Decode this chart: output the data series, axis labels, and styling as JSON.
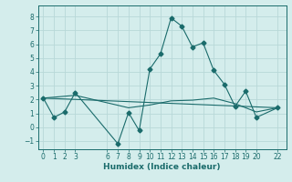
{
  "xlabel": "Humidex (Indice chaleur)",
  "background_color": "#d4edec",
  "grid_color": "#b8d8d8",
  "line_color": "#1a6b6b",
  "xlim": [
    -0.5,
    22.8
  ],
  "ylim": [
    -1.6,
    8.8
  ],
  "xticks": [
    0,
    1,
    2,
    3,
    6,
    7,
    8,
    9,
    10,
    11,
    12,
    13,
    14,
    15,
    16,
    17,
    18,
    19,
    20,
    22
  ],
  "yticks": [
    -1,
    0,
    1,
    2,
    3,
    4,
    5,
    6,
    7,
    8
  ],
  "line1_x": [
    0,
    1,
    2,
    3,
    7,
    8,
    9,
    10,
    11,
    12,
    13,
    14,
    15,
    16,
    17,
    18,
    19,
    20,
    22
  ],
  "line1_y": [
    2.1,
    0.7,
    1.1,
    2.5,
    -1.2,
    1.05,
    -0.25,
    4.2,
    5.3,
    7.9,
    7.3,
    5.8,
    6.1,
    4.1,
    3.1,
    1.5,
    2.6,
    0.7,
    1.4
  ],
  "line2_x": [
    0,
    3,
    8,
    10,
    12,
    14,
    16,
    18,
    20,
    22
  ],
  "line2_y": [
    2.1,
    2.3,
    1.4,
    1.6,
    1.9,
    1.95,
    2.1,
    1.7,
    1.1,
    1.4
  ],
  "line3_x": [
    0,
    22
  ],
  "line3_y": [
    2.1,
    1.4
  ]
}
